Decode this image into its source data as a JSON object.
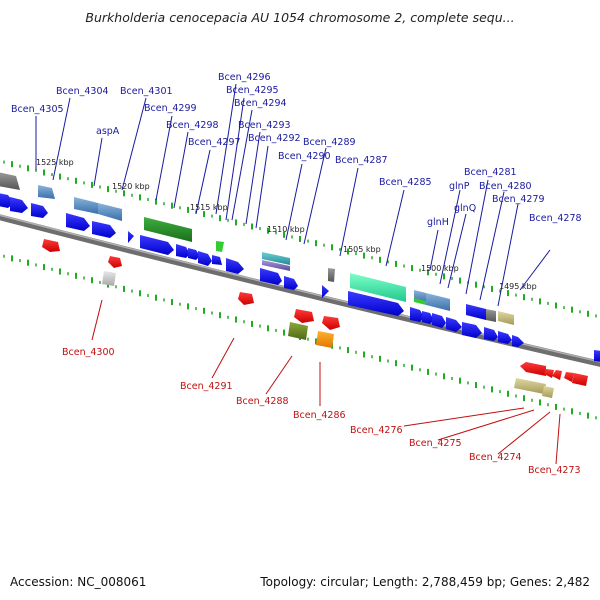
{
  "title": "Burkholderia cenocepacia AU 1054 chromosome 2, complete sequ...",
  "footer": {
    "accession_label": "Accession:",
    "accession": "NC_008061",
    "topology_label": "Topology:",
    "topology": "circular",
    "length_label": "Length:",
    "length": "2,788,459 bp",
    "genes_label": "Genes:",
    "genes": "2,482"
  },
  "colors": {
    "forward_gene": "#1414e6",
    "reverse_gene": "#e61414",
    "backbone": "#808080",
    "tick": "#22aa22"
  },
  "ticks": [
    {
      "label": "1525 kbp"
    },
    {
      "label": "1520 kbp"
    },
    {
      "label": "1515 kbp"
    },
    {
      "label": "1510 kbp"
    },
    {
      "label": "1505 kbp"
    },
    {
      "label": "1500 kbp"
    },
    {
      "label": "1495 kbp"
    }
  ],
  "forward_genes": [
    {
      "name": "Bcen_4305"
    },
    {
      "name": "Bcen_4304"
    },
    {
      "name": "Bcen_4301"
    },
    {
      "name": "aspA"
    },
    {
      "name": "Bcen_4299"
    },
    {
      "name": "Bcen_4298"
    },
    {
      "name": "Bcen_4297"
    },
    {
      "name": "Bcen_4296"
    },
    {
      "name": "Bcen_4295"
    },
    {
      "name": "Bcen_4294"
    },
    {
      "name": "Bcen_4293"
    },
    {
      "name": "Bcen_4292"
    },
    {
      "name": "Bcen_4290"
    },
    {
      "name": "Bcen_4289"
    },
    {
      "name": "Bcen_4287"
    },
    {
      "name": "Bcen_4285"
    },
    {
      "name": "glnH"
    },
    {
      "name": "glnP"
    },
    {
      "name": "glnQ"
    },
    {
      "name": "Bcen_4281"
    },
    {
      "name": "Bcen_4280"
    },
    {
      "name": "Bcen_4279"
    },
    {
      "name": "Bcen_4278"
    }
  ],
  "reverse_genes": [
    {
      "name": "Bcen_4300"
    },
    {
      "name": "Bcen_4291"
    },
    {
      "name": "Bcen_4288"
    },
    {
      "name": "Bcen_4286"
    },
    {
      "name": "Bcen_4276"
    },
    {
      "name": "Bcen_4275"
    },
    {
      "name": "Bcen_4274"
    },
    {
      "name": "Bcen_4273"
    }
  ]
}
